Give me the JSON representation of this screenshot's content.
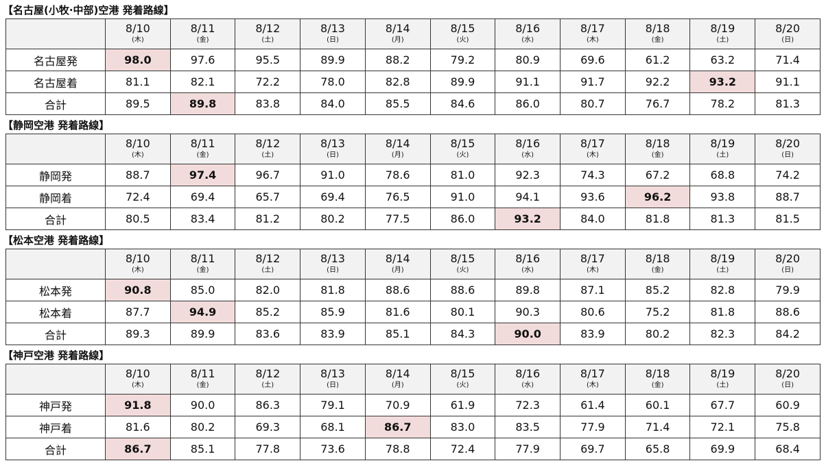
{
  "sections": [
    {
      "title": "【名古屋(小牧·中部)空港 発着路線】",
      "dates": [
        "8/10",
        "8/11",
        "8/12",
        "8/13",
        "8/14",
        "8/15",
        "8/16",
        "8/17",
        "8/18",
        "8/19",
        "8/20"
      ],
      "weekdays": [
        "(木)",
        "(金)",
        "(土)",
        "(日)",
        "(月)",
        "(火)",
        "(水)",
        "(木)",
        "(金)",
        "(土)",
        "(日)"
      ],
      "rows": [
        {
          "label": "名古屋発",
          "values": [
            "98.0",
            "97.6",
            "95.5",
            "89.9",
            "88.2",
            "79.2",
            "80.9",
            "69.6",
            "61.2",
            "63.2",
            "71.4"
          ]
        },
        {
          "label": "名古屋着",
          "values": [
            "81.1",
            "82.1",
            "72.2",
            "78.0",
            "82.8",
            "89.9",
            "91.1",
            "91.7",
            "92.2",
            "93.2",
            "91.1"
          ]
        },
        {
          "label": "合計",
          "values": [
            "89.5",
            "89.8",
            "83.8",
            "84.0",
            "85.5",
            "84.6",
            "86.0",
            "80.7",
            "76.7",
            "78.2",
            "81.3"
          ]
        }
      ]
    },
    {
      "title": "【静岡空港 発着路線】",
      "dates": [
        "8/10",
        "8/11",
        "8/12",
        "8/13",
        "8/14",
        "8/15",
        "8/16",
        "8/17",
        "8/18",
        "8/19",
        "8/20"
      ],
      "weekdays": [
        "(木)",
        "(金)",
        "(土)",
        "(日)",
        "(月)",
        "(火)",
        "(水)",
        "(木)",
        "(金)",
        "(土)",
        "(日)"
      ],
      "rows": [
        {
          "label": "静岡発",
          "values": [
            "88.7",
            "97.4",
            "96.7",
            "91.0",
            "78.6",
            "81.0",
            "92.3",
            "74.3",
            "67.2",
            "68.8",
            "74.2"
          ]
        },
        {
          "label": "静岡着",
          "values": [
            "72.4",
            "69.4",
            "65.7",
            "69.4",
            "76.5",
            "91.0",
            "94.1",
            "93.6",
            "96.2",
            "93.8",
            "88.7"
          ]
        },
        {
          "label": "合計",
          "values": [
            "80.5",
            "83.4",
            "81.2",
            "80.2",
            "77.5",
            "86.0",
            "93.2",
            "84.0",
            "81.8",
            "81.3",
            "81.5"
          ]
        }
      ]
    },
    {
      "title": "【松本空港 発着路線】",
      "dates": [
        "8/10",
        "8/11",
        "8/12",
        "8/13",
        "8/14",
        "8/15",
        "8/16",
        "8/17",
        "8/18",
        "8/19",
        "8/20"
      ],
      "weekdays": [
        "(木)",
        "(金)",
        "(土)",
        "(日)",
        "(月)",
        "(火)",
        "(水)",
        "(木)",
        "(金)",
        "(土)",
        "(日)"
      ],
      "rows": [
        {
          "label": "松本発",
          "values": [
            "90.8",
            "85.0",
            "82.0",
            "81.8",
            "88.6",
            "88.6",
            "89.8",
            "87.1",
            "85.2",
            "82.8",
            "79.9"
          ]
        },
        {
          "label": "松本着",
          "values": [
            "87.7",
            "94.9",
            "85.2",
            "85.9",
            "81.6",
            "80.1",
            "90.3",
            "80.6",
            "75.2",
            "81.8",
            "88.6"
          ]
        },
        {
          "label": "合計",
          "values": [
            "89.3",
            "89.9",
            "83.6",
            "83.9",
            "85.1",
            "84.3",
            "90.0",
            "83.9",
            "80.2",
            "82.3",
            "84.2"
          ]
        }
      ]
    },
    {
      "title": "【神戸空港 発着路線】",
      "dates": [
        "8/10",
        "8/11",
        "8/12",
        "8/13",
        "8/14",
        "8/15",
        "8/16",
        "8/17",
        "8/18",
        "8/19",
        "8/20"
      ],
      "weekdays": [
        "(木)",
        "(金)",
        "(土)",
        "(日)",
        "(月)",
        "(火)",
        "(水)",
        "(木)",
        "(金)",
        "(土)",
        "(日)"
      ],
      "rows": [
        {
          "label": "神戸発",
          "values": [
            "91.8",
            "90.0",
            "86.3",
            "79.1",
            "70.9",
            "61.9",
            "72.3",
            "61.4",
            "60.1",
            "67.7",
            "60.9"
          ]
        },
        {
          "label": "神戸着",
          "values": [
            "81.6",
            "80.2",
            "69.3",
            "68.1",
            "86.7",
            "83.0",
            "83.5",
            "77.9",
            "71.4",
            "72.1",
            "75.8"
          ]
        },
        {
          "label": "合計",
          "values": [
            "86.7",
            "85.1",
            "77.8",
            "73.6",
            "78.8",
            "72.4",
            "77.9",
            "69.7",
            "65.8",
            "69.9",
            "68.4"
          ]
        }
      ]
    }
  ]
}
